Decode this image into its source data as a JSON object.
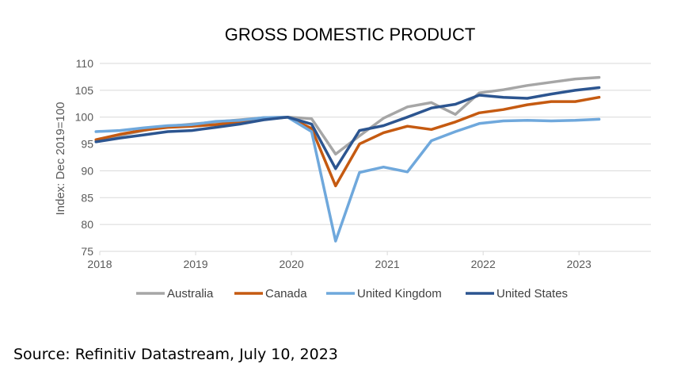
{
  "title": "GROSS DOMESTIC PRODUCT",
  "source": "Source: Refinitiv Datastream, July 10, 2023",
  "chart_data": {
    "type": "line",
    "title": "GROSS DOMESTIC PRODUCT",
    "ylabel": "Index: Dec 2019=100",
    "xlabel": "",
    "ylim": [
      75,
      110
    ],
    "xlim": [
      2018.0,
      2023.75
    ],
    "yticks": [
      75,
      80,
      85,
      90,
      95,
      100,
      105,
      110
    ],
    "xticks": [
      "2018",
      "2019",
      "2020",
      "2021",
      "2022",
      "2023"
    ],
    "grid": "horizontal",
    "legend_position": "bottom",
    "x": [
      2017.96,
      2018.21,
      2018.46,
      2018.71,
      2018.96,
      2019.21,
      2019.46,
      2019.71,
      2019.96,
      2020.21,
      2020.46,
      2020.71,
      2020.96,
      2021.21,
      2021.46,
      2021.71,
      2021.96,
      2022.21,
      2022.46,
      2022.71,
      2022.96,
      2023.21
    ],
    "series": [
      {
        "name": "Australia",
        "color": "#a6a6a6",
        "values": [
          95.7,
          96.6,
          97.5,
          98.3,
          98.7,
          99.1,
          99.5,
          99.9,
          100.0,
          99.7,
          93.1,
          96.5,
          99.8,
          101.9,
          102.7,
          100.5,
          104.5,
          105.1,
          105.9,
          106.5,
          107.1,
          107.4
        ]
      },
      {
        "name": "Canada",
        "color": "#c55a11",
        "values": [
          95.8,
          96.8,
          97.6,
          98.1,
          98.3,
          98.6,
          99.1,
          99.6,
          100.0,
          97.9,
          87.2,
          95.0,
          97.1,
          98.3,
          97.7,
          99.1,
          100.8,
          101.4,
          102.3,
          102.9,
          102.9,
          103.7
        ]
      },
      {
        "name": "United Kingdom",
        "color": "#6fa8dc",
        "values": [
          97.3,
          97.5,
          98.0,
          98.4,
          98.6,
          99.2,
          99.4,
          99.9,
          100.0,
          97.3,
          76.9,
          89.7,
          90.7,
          89.8,
          95.6,
          97.3,
          98.8,
          99.3,
          99.4,
          99.3,
          99.4,
          99.6
        ]
      },
      {
        "name": "United States",
        "color": "#2c5590",
        "values": [
          95.4,
          96.1,
          96.7,
          97.3,
          97.5,
          98.1,
          98.7,
          99.5,
          100.0,
          98.7,
          90.4,
          97.5,
          98.4,
          100.0,
          101.7,
          102.4,
          104.1,
          103.7,
          103.5,
          104.3,
          105.0,
          105.5
        ]
      }
    ]
  }
}
